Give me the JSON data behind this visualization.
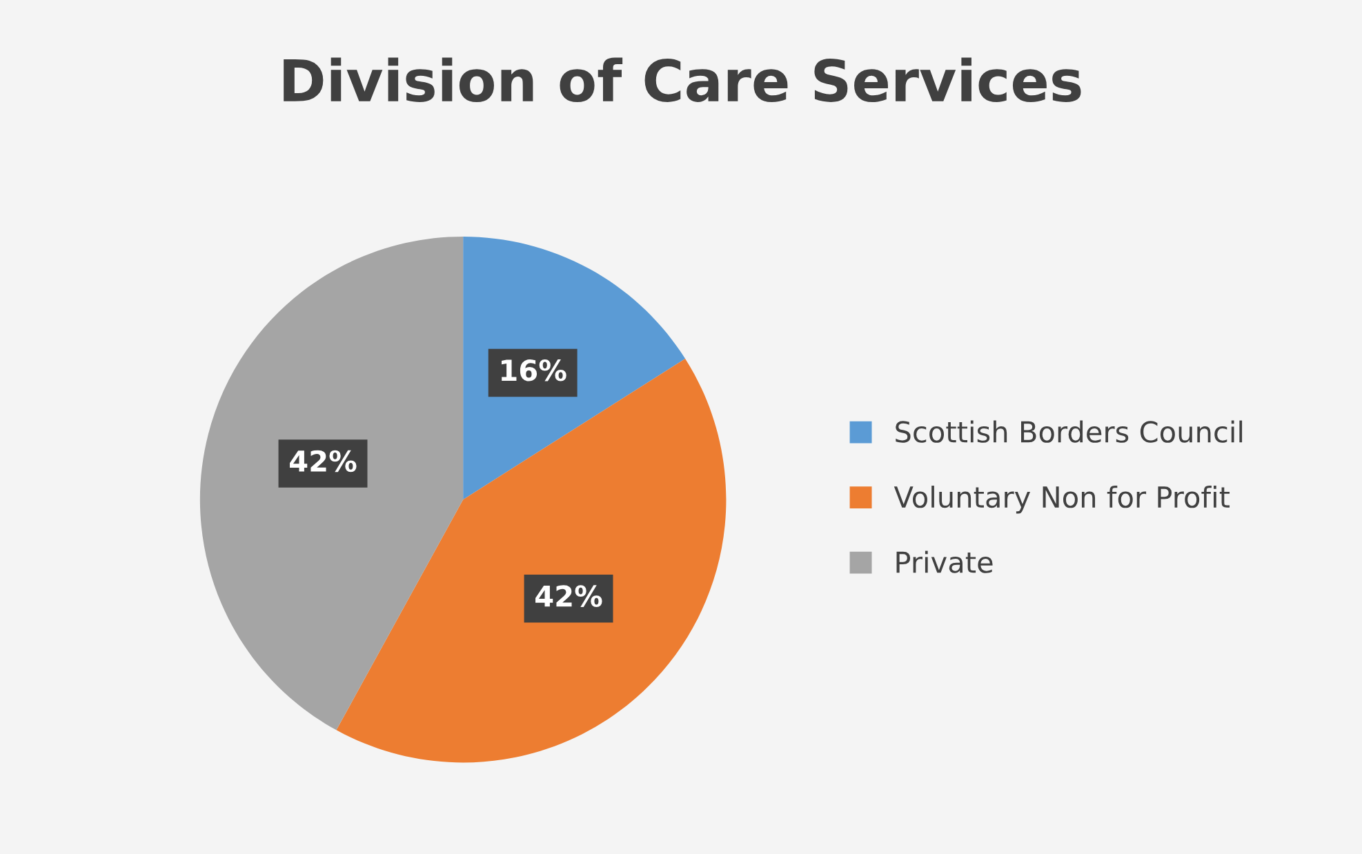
{
  "chart_data": {
    "type": "pie",
    "title": "Division of Care Services",
    "categories": [
      "Scottish Borders Council",
      "Voluntary Non for Profit",
      "Private"
    ],
    "values": [
      16,
      42,
      42
    ],
    "colors": [
      "#5b9bd5",
      "#ed7d31",
      "#a5a5a5"
    ],
    "value_labels": [
      "16%",
      "42%",
      "42%"
    ],
    "legend": "right"
  }
}
